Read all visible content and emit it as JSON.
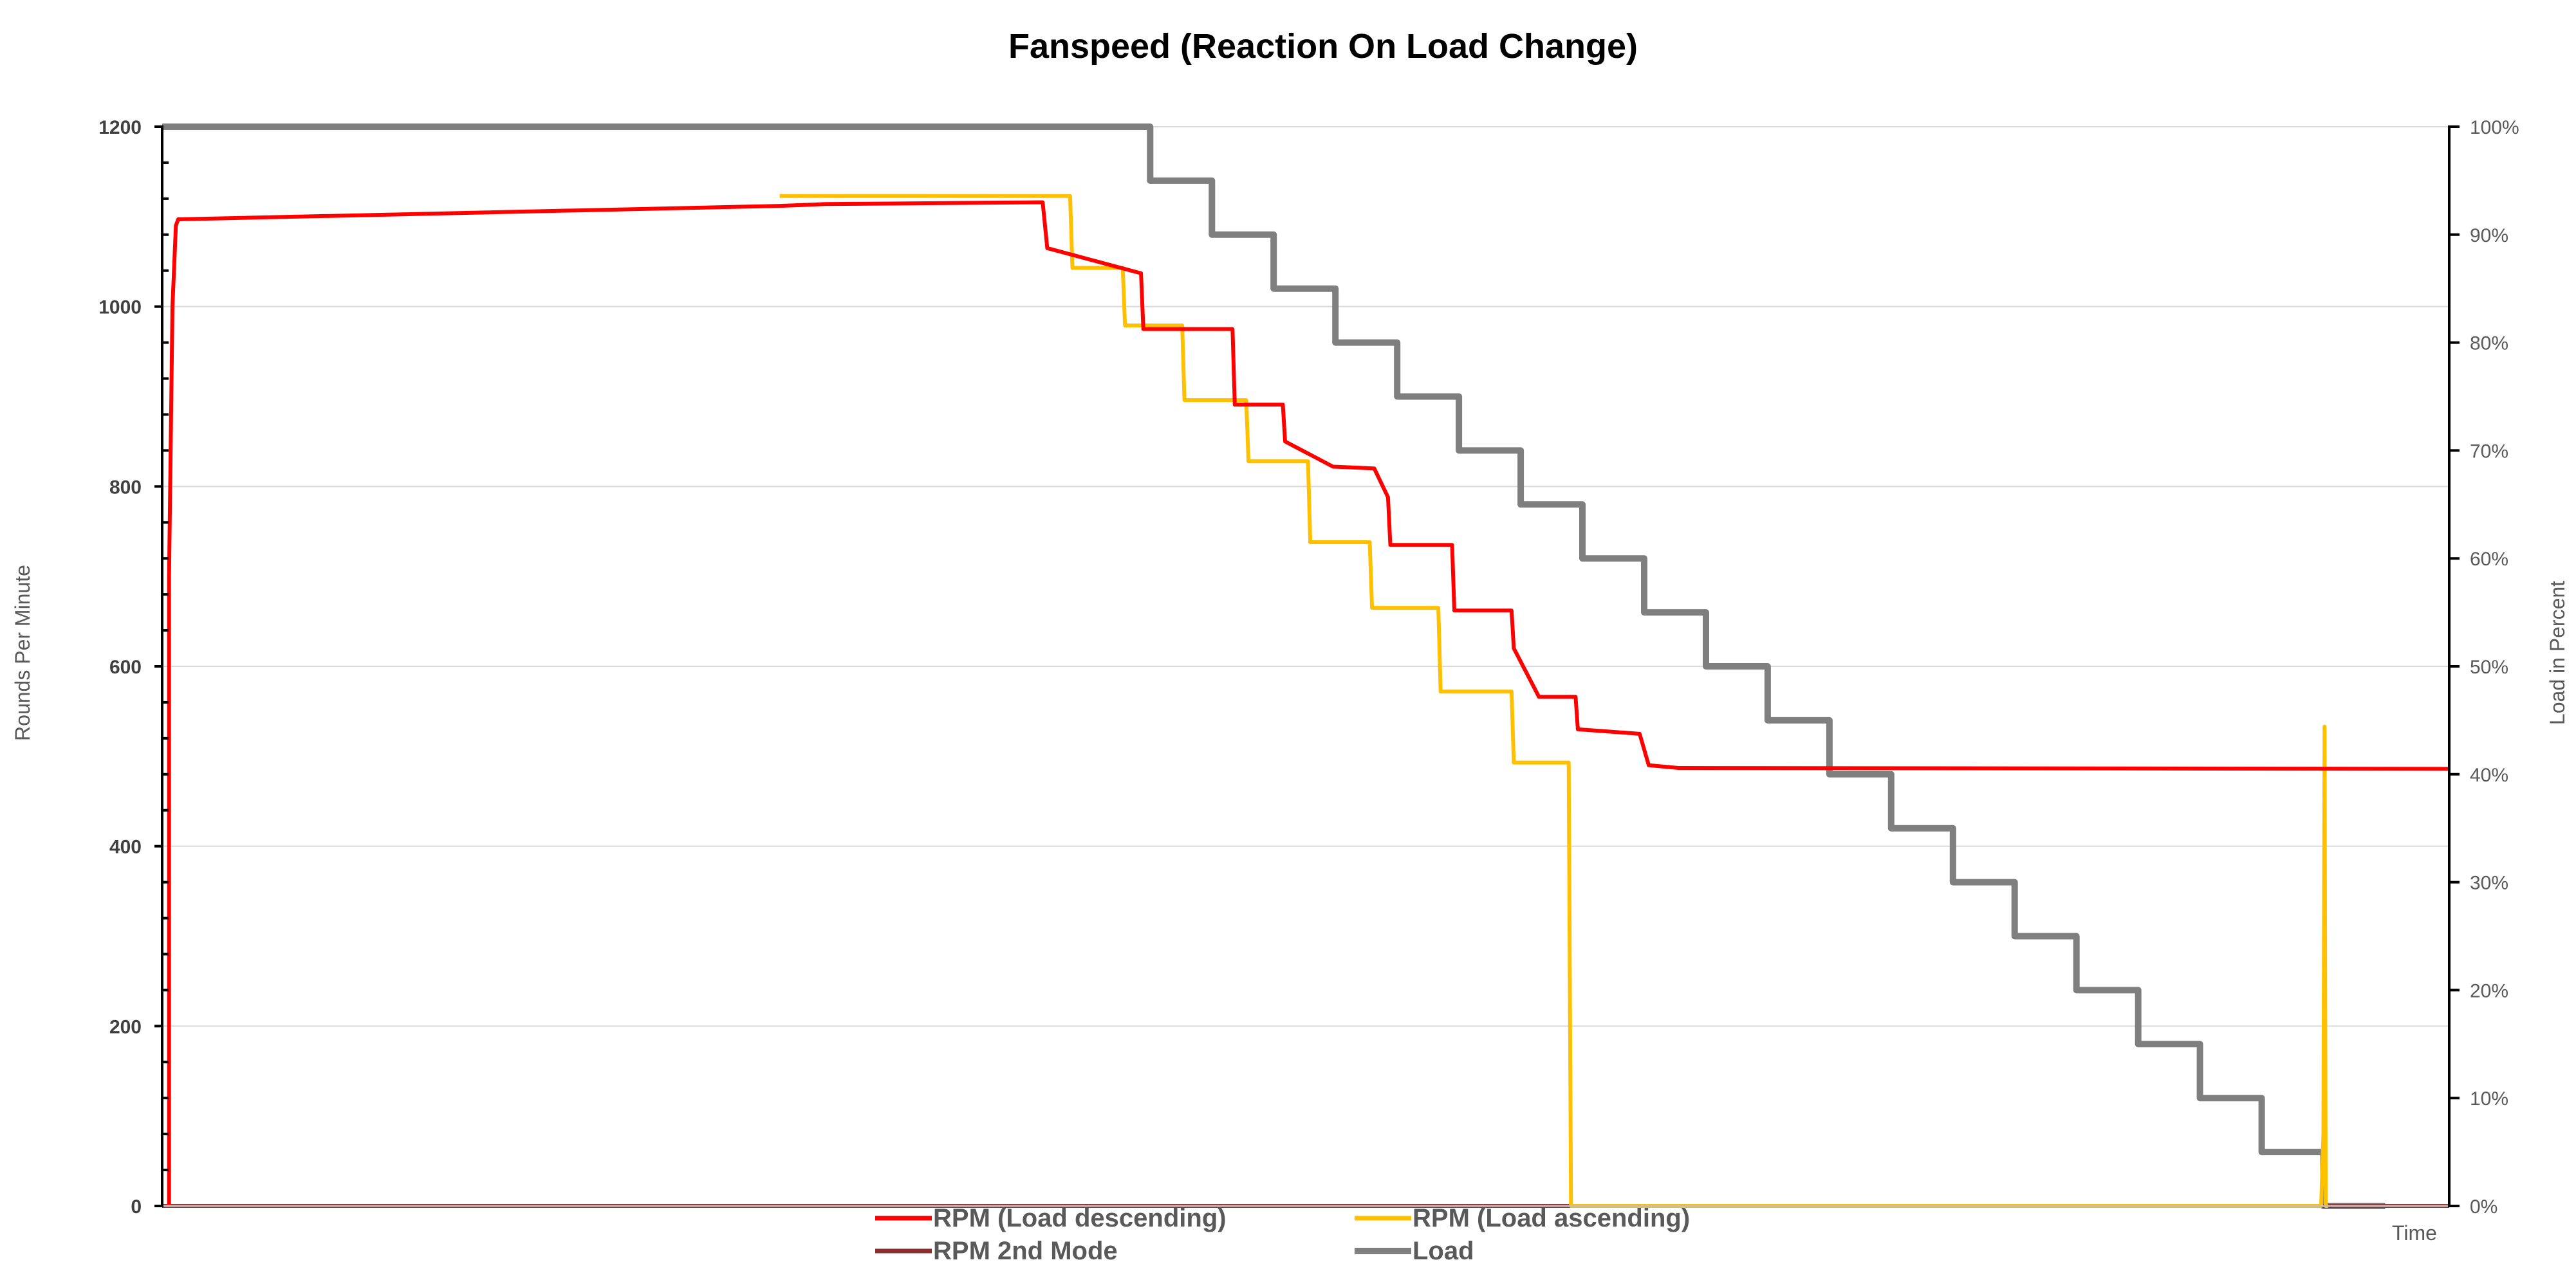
{
  "chart_data": {
    "type": "line",
    "title": "Fanspeed (Reaction On Load Change)",
    "xlabel": "Time",
    "ylabel": "Rounds Per Minute",
    "y2label": "Load in Percent",
    "ylim": [
      0,
      1200
    ],
    "y2lim": [
      0,
      100
    ],
    "xlim": [
      0,
      1000
    ],
    "yticks": [
      "0",
      "200",
      "400",
      "600",
      "800",
      "1000",
      "1200"
    ],
    "y2ticks": [
      "0%",
      "10%",
      "20%",
      "30%",
      "40%",
      "50%",
      "60%",
      "70%",
      "80%",
      "90%",
      "100%"
    ],
    "grid": true,
    "legend_position": "bottom",
    "series": [
      {
        "name": "RPM (Load descending)",
        "axis": "left",
        "color": "#ff0000",
        "x": [
          3,
          3,
          4.5,
          6,
          7,
          270,
          280,
          290,
          385,
          387,
          428,
          429,
          468,
          469,
          490,
          491,
          512,
          513,
          530,
          536,
          537,
          564,
          565,
          590,
          591,
          602,
          618,
          619,
          646,
          650,
          663,
          664,
          1000
        ],
        "y": [
          0,
          700,
          1000,
          1090,
          1097,
          1112,
          1113,
          1114,
          1116,
          1065,
          1037,
          975,
          975,
          891,
          891,
          850,
          822,
          822,
          820,
          788,
          735,
          735,
          662,
          662,
          620,
          566,
          566,
          530,
          525,
          490,
          487,
          487,
          486
        ]
      },
      {
        "name": "RPM (Load ascending)",
        "axis": "left",
        "color": "#ffc000",
        "x": [
          270,
          397,
          398,
          420,
          421,
          446,
          447,
          474,
          475,
          501,
          502,
          528,
          529,
          558,
          559,
          590,
          591,
          615,
          616,
          617,
          618,
          944,
          945,
          945.5,
          946,
          946.5,
          947
        ],
        "y": [
          1123,
          1123,
          1043,
          1043,
          979,
          979,
          896,
          896,
          828,
          828,
          738,
          738,
          665,
          665,
          572,
          572,
          493,
          493,
          0,
          0,
          0,
          0,
          80,
          533,
          0,
          0,
          0
        ]
      },
      {
        "name": "RPM 2nd Mode",
        "axis": "left",
        "color": "#8b2d2d",
        "x": [
          0,
          1000
        ],
        "y": [
          0,
          0
        ]
      },
      {
        "name": "Load",
        "axis": "right",
        "color": "#7f7f7f",
        "x": [
          0,
          432,
          432,
          459,
          459,
          486,
          486,
          513,
          513,
          540,
          540,
          567,
          567,
          594,
          594,
          621,
          621,
          648,
          648,
          675,
          675,
          702,
          702,
          729,
          729,
          756,
          756,
          783,
          783,
          810,
          810,
          837,
          837,
          864,
          864,
          891,
          891,
          918,
          918,
          945,
          945,
          972
        ],
        "y": [
          100,
          100,
          95,
          95,
          90,
          90,
          85,
          85,
          80,
          80,
          75,
          75,
          70,
          70,
          65,
          65,
          60,
          60,
          55,
          55,
          50,
          50,
          45,
          45,
          40,
          40,
          35,
          35,
          30,
          30,
          25,
          25,
          20,
          20,
          15,
          15,
          10,
          10,
          5,
          5,
          0,
          0
        ]
      }
    ]
  }
}
